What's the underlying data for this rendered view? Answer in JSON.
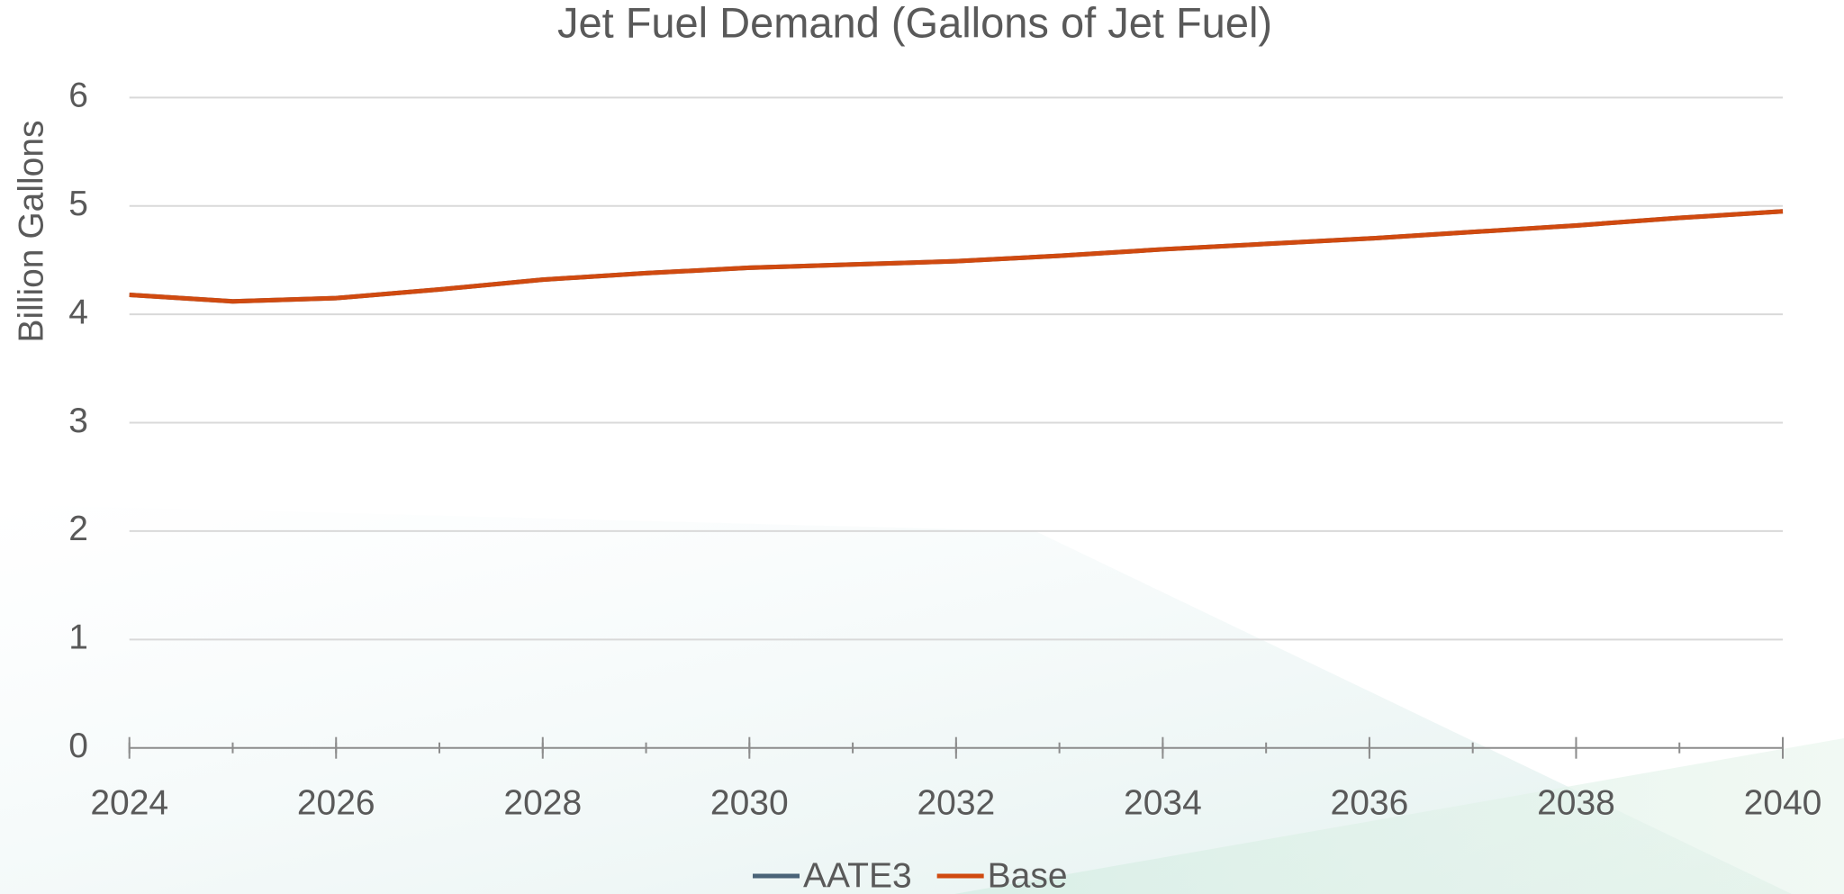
{
  "chart_data": {
    "type": "line",
    "title": "Jet Fuel Demand (Gallons of Jet Fuel)",
    "y_label": "Billion Gallons",
    "x": [
      2024,
      2025,
      2026,
      2027,
      2028,
      2029,
      2030,
      2031,
      2032,
      2033,
      2034,
      2035,
      2036,
      2037,
      2038,
      2039,
      2040
    ],
    "series": [
      {
        "name": "AATE3",
        "color": "#4a6378",
        "values": [
          4.18,
          4.12,
          4.15,
          4.23,
          4.32,
          4.38,
          4.43,
          4.46,
          4.49,
          4.54,
          4.6,
          4.65,
          4.7,
          4.76,
          4.82,
          4.89,
          4.95
        ]
      },
      {
        "name": "Base",
        "color": "#d04a10",
        "values": [
          4.18,
          4.12,
          4.15,
          4.23,
          4.32,
          4.38,
          4.43,
          4.46,
          4.49,
          4.54,
          4.6,
          4.65,
          4.7,
          4.76,
          4.82,
          4.89,
          4.95
        ]
      }
    ],
    "xlim": [
      2024,
      2040
    ],
    "xticks": [
      2024,
      2026,
      2028,
      2030,
      2032,
      2034,
      2036,
      2038,
      2040
    ],
    "ylim": [
      0,
      6
    ],
    "yticks": [
      0,
      1,
      2,
      3,
      4,
      5,
      6
    ],
    "grid": true,
    "legend": "bottom"
  }
}
